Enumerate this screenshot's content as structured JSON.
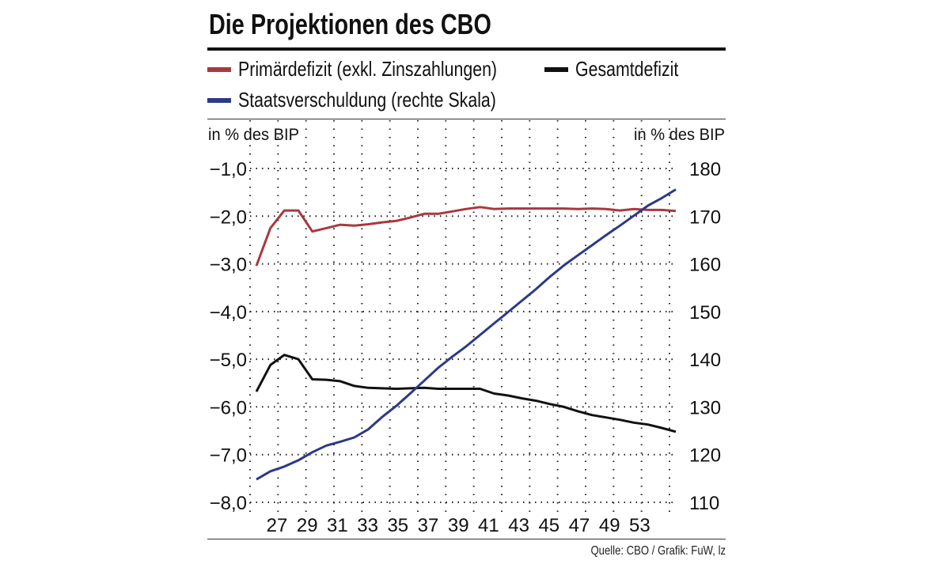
{
  "title": "Die Projektionen des CBO",
  "legend": [
    {
      "label": "Primärdefizit (exkl. Zinszahlungen)",
      "color": "#a8393f"
    },
    {
      "label": "Gesamtdefizit",
      "color": "#111111"
    },
    {
      "label": "Staatsverschuldung (rechte Skala)",
      "color": "#2b3a87"
    }
  ],
  "source": "Quelle: CBO / Grafik: FuW, lz",
  "chart_data": {
    "type": "line",
    "title": "Die Projektionen des CBO",
    "ylabel_left": "in % des BIP",
    "ylabel_right": "in % des BIP",
    "ylim_left": [
      -8.0,
      -1.0
    ],
    "ylim_right": [
      110,
      180
    ],
    "yticks_left": [
      "−1,0",
      "−2,0",
      "−3,0",
      "−4,0",
      "−5,0",
      "−6,0",
      "−7,0",
      "−8,0"
    ],
    "yticks_right": [
      "180",
      "170",
      "160",
      "150",
      "140",
      "130",
      "120",
      "110"
    ],
    "xtick_labels": [
      "27",
      "29",
      "31",
      "33",
      "35",
      "37",
      "39",
      "41",
      "43",
      "45",
      "47",
      "49",
      "53"
    ],
    "grid": "dotted",
    "x": [
      2025,
      2026,
      2027,
      2028,
      2029,
      2030,
      2031,
      2032,
      2033,
      2034,
      2035,
      2036,
      2037,
      2038,
      2039,
      2040,
      2041,
      2042,
      2043,
      2044,
      2045,
      2046,
      2047,
      2048,
      2049,
      2050,
      2051,
      2052,
      2053,
      2054,
      2055
    ],
    "series": [
      {
        "name": "Primärdefizit (exkl. Zinszahlungen)",
        "axis": "left",
        "color": "#a8393f",
        "values": [
          -3.04,
          -2.25,
          -1.88,
          -1.88,
          -2.32,
          -2.25,
          -2.18,
          -2.2,
          -2.17,
          -2.13,
          -2.1,
          -2.03,
          -1.95,
          -1.95,
          -1.9,
          -1.85,
          -1.81,
          -1.85,
          -1.84,
          -1.84,
          -1.84,
          -1.84,
          -1.84,
          -1.85,
          -1.84,
          -1.85,
          -1.88,
          -1.85,
          -1.87,
          -1.87,
          -1.89
        ]
      },
      {
        "name": "Gesamtdefizit",
        "axis": "left",
        "color": "#111111",
        "values": [
          -5.68,
          -5.12,
          -4.91,
          -5.0,
          -5.42,
          -5.43,
          -5.46,
          -5.56,
          -5.6,
          -5.61,
          -5.62,
          -5.61,
          -5.6,
          -5.62,
          -5.62,
          -5.62,
          -5.62,
          -5.72,
          -5.76,
          -5.82,
          -5.87,
          -5.94,
          -6.0,
          -6.09,
          -6.17,
          -6.22,
          -6.27,
          -6.33,
          -6.37,
          -6.44,
          -6.52
        ]
      },
      {
        "name": "Staatsverschuldung (rechte Skala)",
        "axis": "right",
        "color": "#2b3a87",
        "values": [
          114.8,
          116.5,
          117.5,
          118.8,
          120.5,
          121.9,
          122.7,
          123.6,
          125.3,
          127.9,
          130.2,
          132.8,
          135.5,
          138.2,
          140.5,
          142.7,
          145.1,
          147.5,
          149.9,
          152.3,
          154.7,
          157.3,
          159.7,
          161.8,
          163.9,
          166.0,
          168.0,
          170.1,
          172.2,
          173.8,
          175.6
        ]
      }
    ]
  }
}
